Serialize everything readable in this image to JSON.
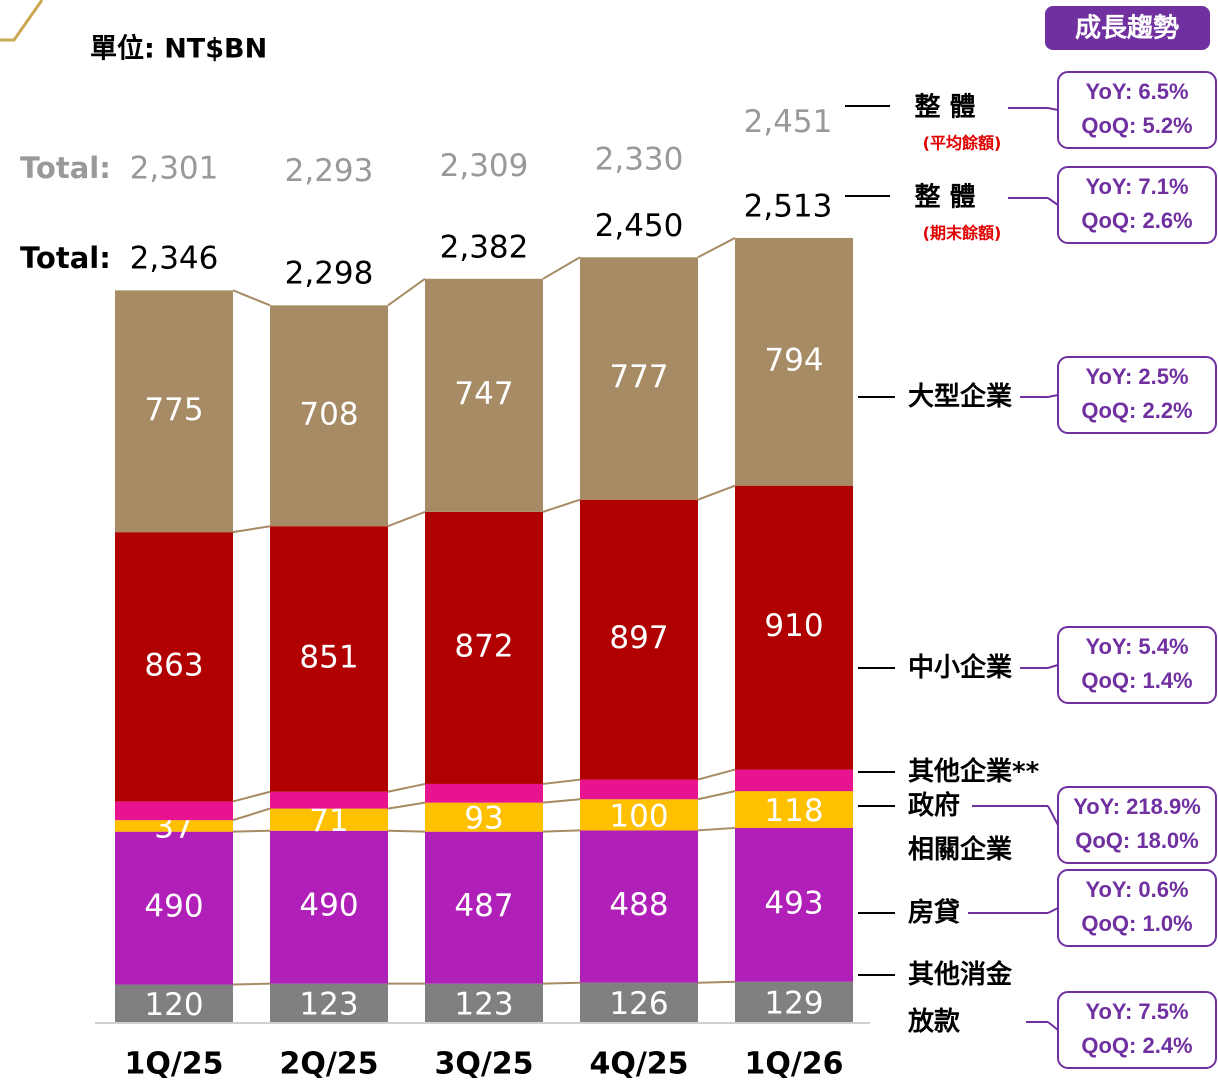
{
  "chart_data": {
    "type": "stacked_bar",
    "unit": "單位: NT$BN",
    "trend_header": "成長趨勢",
    "categories": [
      "1Q/25",
      "2Q/25",
      "3Q/25",
      "4Q/25",
      "1Q/26"
    ],
    "series": [
      {
        "name": "其他消金\n放款",
        "color": "#808080",
        "values": [
          120,
          123,
          123,
          126,
          129
        ],
        "yoy": "YoY: 7.5%",
        "qoq": "QoQ: 2.4%"
      },
      {
        "name": "房貸",
        "color": "#b020b8",
        "values": [
          490,
          490,
          487,
          488,
          493
        ],
        "yoy": "YoY: 0.6%",
        "qoq": "QoQ: 1.0%"
      },
      {
        "name": "政府\n相關企業",
        "color": "#ffc000",
        "values": [
          37,
          71,
          93,
          100,
          118
        ],
        "yoy": "YoY: 218.9%",
        "qoq": "QoQ: 18.0%"
      },
      {
        "name": "其他企業**",
        "color": "#e8138e",
        "values": [
          60,
          54,
          60,
          63,
          69
        ]
      },
      {
        "name": "中小企業",
        "color": "#b00000",
        "values": [
          863,
          851,
          872,
          897,
          910
        ],
        "yoy": "YoY: 5.4%",
        "qoq": "QoQ: 1.4%"
      },
      {
        "name": "大型企業",
        "color": "#a68b64",
        "values": [
          775,
          708,
          747,
          777,
          794
        ],
        "yoy": "YoY: 2.5%",
        "qoq": "QoQ: 2.2%"
      }
    ],
    "totals": [
      {
        "label": "Total:",
        "name": "整 體",
        "note": "(平均餘額)",
        "values": [
          2301,
          2293,
          2309,
          2330,
          2451
        ],
        "value_labels": [
          "2,301",
          "2,293",
          "2,309",
          "2,330",
          "2,451"
        ],
        "yoy": "YoY: 6.5%",
        "qoq": "QoQ: 5.2%"
      },
      {
        "label": "Total:",
        "name": "整 體",
        "note": "(期末餘額)",
        "values": [
          2346,
          2298,
          2382,
          2450,
          2513
        ],
        "value_labels": [
          "2,346",
          "2,298",
          "2,382",
          "2,450",
          "2,513"
        ],
        "yoy": "YoY: 7.1%",
        "qoq": "QoQ: 2.6%"
      }
    ]
  }
}
